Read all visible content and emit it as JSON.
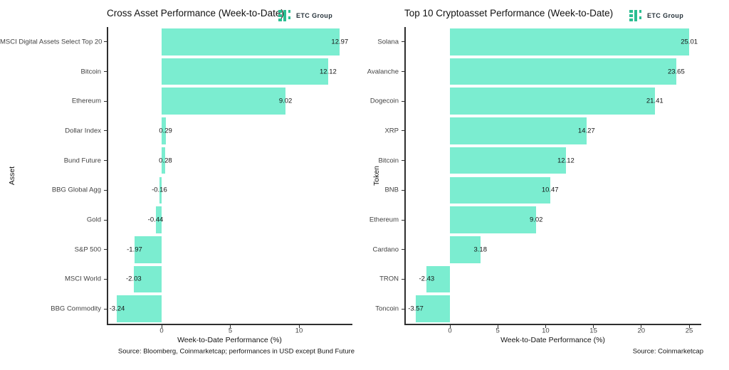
{
  "colors": {
    "bar_fill": "#7BEDD0",
    "logo_green": "#2BBE92",
    "axis_line": "#2e2e2e"
  },
  "chart_data": [
    {
      "type": "bar",
      "orientation": "horizontal",
      "title": "Cross Asset Performance (Week-to-Date)",
      "logo_text": "ETC Group",
      "ylabel": "Asset",
      "xlabel": "Week-to-Date Performance (%)",
      "source": "Source: Bloomberg, Coinmarketcap; performances in USD except Bund Future",
      "categories": [
        "MSCI Digital Assets Select Top 20",
        "Bitcoin",
        "Ethereum",
        "Dollar Index",
        "Bund Future",
        "BBG Global Agg",
        "Gold",
        "S&P 500",
        "MSCI World",
        "BBG Commodity"
      ],
      "values": [
        12.97,
        12.12,
        9.02,
        0.29,
        0.28,
        -0.16,
        -0.44,
        -1.97,
        -2.03,
        -3.24
      ],
      "value_labels": [
        "12.97",
        "12.12",
        "9.02",
        "0.29",
        "0.28",
        "-0.16",
        "-0.44",
        "-1.97",
        "-2.03",
        "-3.24"
      ],
      "xticks": [
        0,
        5,
        10
      ],
      "xlim": [
        -4.0,
        13.9
      ],
      "grid": false,
      "legend": "none"
    },
    {
      "type": "bar",
      "orientation": "horizontal",
      "title": "Top 10 Cryptoasset Performance (Week-to-Date)",
      "logo_text": "ETC Group",
      "ylabel": "Token",
      "xlabel": "Week-to-Date Performance (%)",
      "source": "Source: Coinmarketcap",
      "categories": [
        "Solana",
        "Avalanche",
        "Dogecoin",
        "XRP",
        "Bitcoin",
        "BNB",
        "Ethereum",
        "Cardano",
        "TRON",
        "Toncoin"
      ],
      "values": [
        25.01,
        23.65,
        21.41,
        14.27,
        12.12,
        10.47,
        9.02,
        3.18,
        -2.43,
        -3.57
      ],
      "value_labels": [
        "25.01",
        "23.65",
        "21.41",
        "14.27",
        "12.12",
        "10.47",
        "9.02",
        "3.18",
        "-2.43",
        "-3.57"
      ],
      "xticks": [
        0,
        5,
        10,
        15,
        20,
        25
      ],
      "xlim": [
        -4.8,
        26.3
      ],
      "grid": false,
      "legend": "none"
    }
  ]
}
